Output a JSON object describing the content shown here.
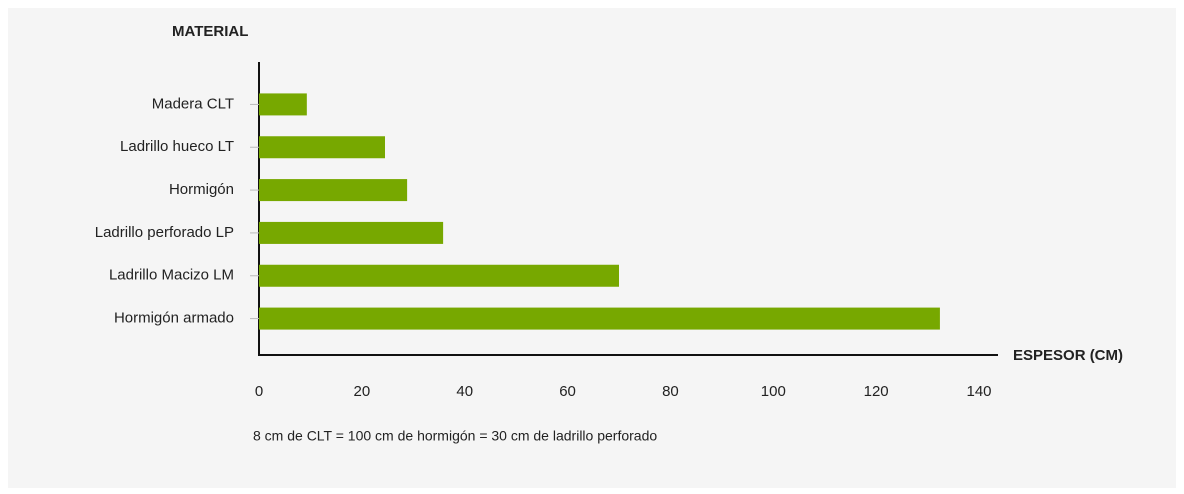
{
  "chart_data": {
    "type": "bar",
    "orientation": "horizontal",
    "y_label": "MATERIAL",
    "x_label": "ESPESOR (CM)",
    "annotation": "8 cm de CLT = 100 cm de hormigón = 30 cm de ladrillo perforado",
    "categories": [
      "Madera CLT",
      "Ladrillo hueco LT",
      "Hormigón",
      "Ladrillo perforado LP",
      "Ladrillo Macizo LM",
      "Hormigón armado"
    ],
    "values": [
      9.3,
      24.5,
      28.8,
      35.8,
      70,
      132.4
    ],
    "color": "#77a800",
    "xlim": [
      0,
      140
    ],
    "xticks": [
      0,
      20,
      40,
      60,
      80,
      100,
      120,
      140
    ],
    "grid": false
  }
}
